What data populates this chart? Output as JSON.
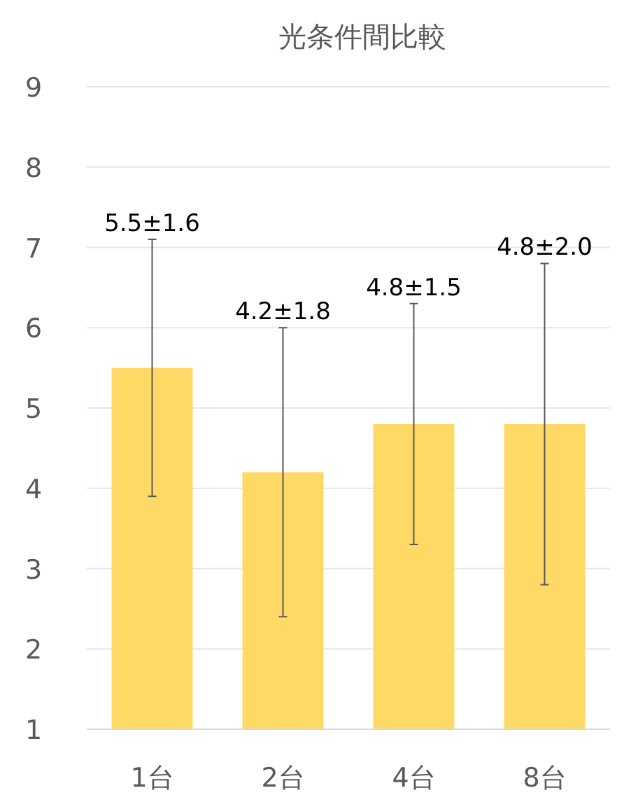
{
  "chart_data": {
    "type": "bar",
    "title": "光条件間比較",
    "categories": [
      "1台",
      "2台",
      "4台",
      "8台"
    ],
    "values": [
      5.5,
      4.2,
      4.8,
      4.8
    ],
    "errors": [
      1.6,
      1.8,
      1.5,
      2.0
    ],
    "annotations": [
      {
        "text": "5.5±1.6",
        "x": "1台",
        "y": 7.1
      },
      {
        "text": "4.2±1.8",
        "x": "2台",
        "y": 6.0
      },
      {
        "text": "4.8±1.5",
        "x": "4台",
        "y": 6.3
      },
      {
        "text": "4.8±2.0",
        "x": "8台",
        "y": 6.8
      }
    ],
    "color": "#ffd966",
    "ylim": [
      1,
      9
    ],
    "yticks": [
      1,
      2,
      3,
      4,
      5,
      6,
      7,
      8,
      9
    ],
    "grid": "y"
  }
}
